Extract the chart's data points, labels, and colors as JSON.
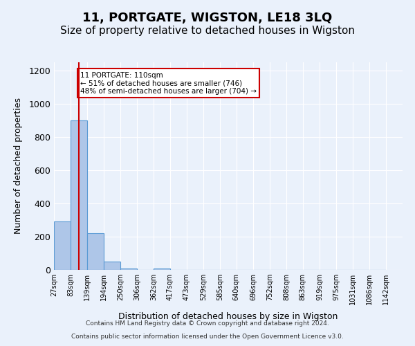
{
  "title": "11, PORTGATE, WIGSTON, LE18 3LQ",
  "subtitle": "Size of property relative to detached houses in Wigston",
  "xlabel": "Distribution of detached houses by size in Wigston",
  "ylabel": "Number of detached properties",
  "bin_labels": [
    "27sqm",
    "83sqm",
    "139sqm",
    "194sqm",
    "250sqm",
    "306sqm",
    "362sqm",
    "417sqm",
    "473sqm",
    "529sqm",
    "585sqm",
    "640sqm",
    "696sqm",
    "752sqm",
    "808sqm",
    "863sqm",
    "919sqm",
    "975sqm",
    "1031sqm",
    "1086sqm",
    "1142sqm"
  ],
  "bar_values": [
    290,
    900,
    220,
    50,
    10,
    0,
    10,
    0,
    0,
    0,
    0,
    0,
    0,
    0,
    0,
    0,
    0,
    0,
    0,
    0
  ],
  "bar_color": "#aec6e8",
  "bar_edge_color": "#5b9bd5",
  "ylim": [
    0,
    1250
  ],
  "yticks": [
    0,
    200,
    400,
    600,
    800,
    1000,
    1200
  ],
  "red_line_x": 110,
  "annotation_line1": "11 PORTGATE: 110sqm",
  "annotation_line2": "← 51% of detached houses are smaller (746)",
  "annotation_line3": "48% of semi-detached houses are larger (704) →",
  "bin_edges": [
    27,
    83,
    139,
    194,
    250,
    306,
    362,
    417,
    473,
    529,
    585,
    640,
    696,
    752,
    808,
    863,
    919,
    975,
    1031,
    1086,
    1142
  ],
  "footer_line1": "Contains HM Land Registry data © Crown copyright and database right 2024.",
  "footer_line2": "Contains public sector information licensed under the Open Government Licence v3.0.",
  "background_color": "#eaf1fb",
  "grid_color": "#ffffff",
  "title_fontsize": 13,
  "subtitle_fontsize": 11,
  "annotation_box_color": "#ffffff",
  "annotation_box_edge": "#cc0000"
}
